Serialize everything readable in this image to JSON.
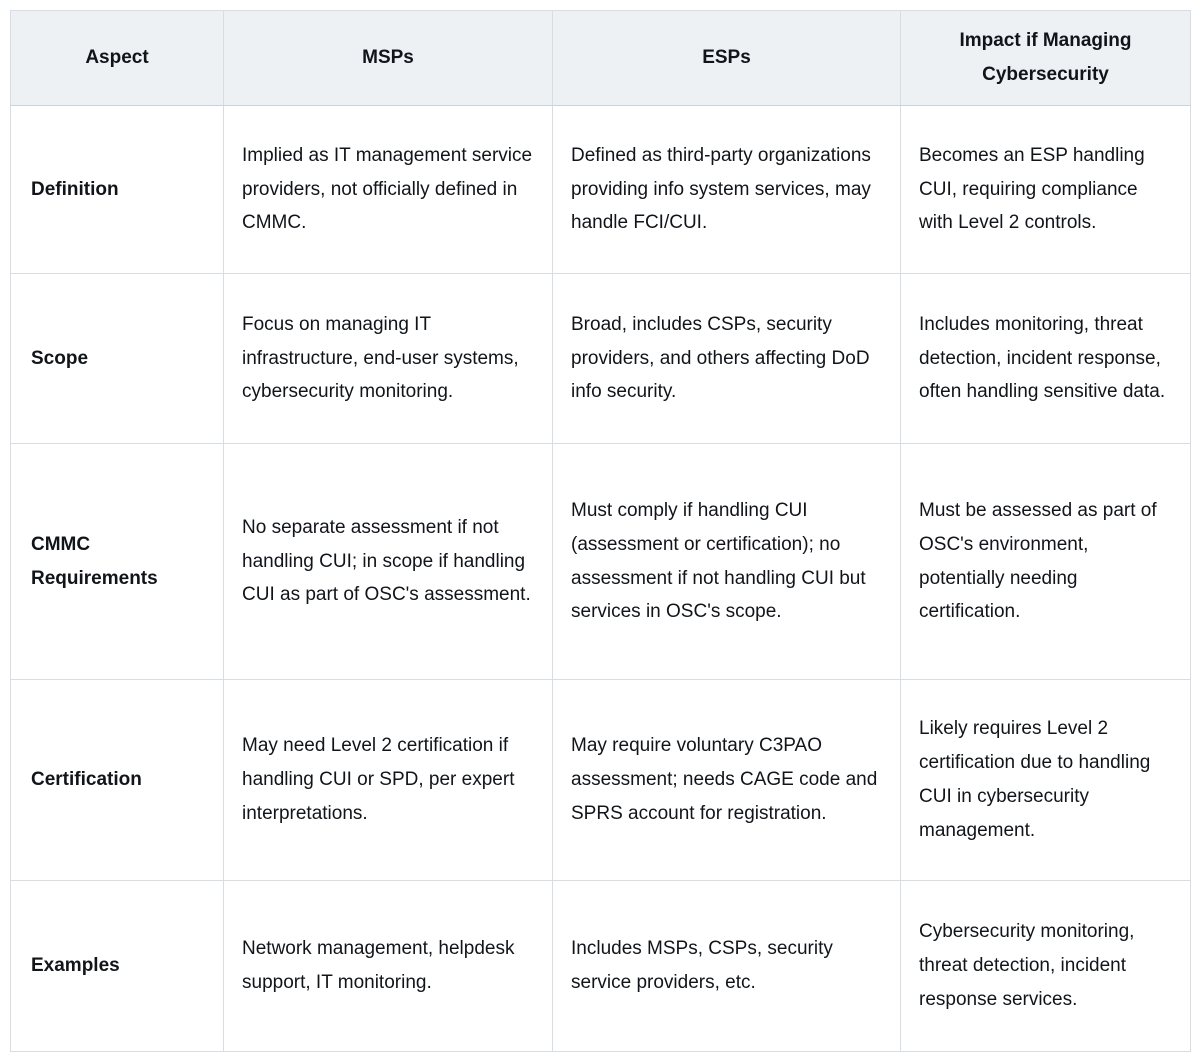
{
  "colors": {
    "header_background": "#eef1f4",
    "border": "#d7dde2",
    "header_bottom_border": "#c9d3da",
    "text": "#11151a",
    "page_background": "#ffffff"
  },
  "table": {
    "columns": [
      {
        "label": "Aspect"
      },
      {
        "label": "MSPs"
      },
      {
        "label": "ESPs"
      },
      {
        "label": "Impact if Managing Cybersecurity"
      }
    ],
    "rows": [
      {
        "aspect": "Definition",
        "msps": "Implied as IT management service providers, not officially defined in CMMC.",
        "esps": "Defined as third-party organizations providing info system services, may handle FCI/CUI.",
        "impact": "Becomes an ESP handling CUI, requiring compliance with Level 2 controls."
      },
      {
        "aspect": "Scope",
        "msps": "Focus on managing IT infrastructure, end-user systems, cybersecurity monitoring.",
        "esps": "Broad, includes CSPs, security providers, and others affecting DoD info security.",
        "impact": "Includes monitoring, threat detection, incident response, often handling sensitive data."
      },
      {
        "aspect": "CMMC Requirements",
        "msps": "No separate assessment if not handling CUI; in scope if handling CUI as part of OSC's assessment.",
        "esps": "Must comply if handling CUI (assessment or certification); no assessment if not handling CUI but services in OSC's scope.",
        "impact": "Must be assessed as part of OSC's environment, potentially needing certification."
      },
      {
        "aspect": "Certification",
        "msps": "May need Level 2 certification if handling CUI or SPD, per expert interpretations.",
        "esps": "May require voluntary C3PAO assessment; needs CAGE code and SPRS account for registration.",
        "impact": "Likely requires Level 2 certification due to handling CUI in cybersecurity management."
      },
      {
        "aspect": "Examples",
        "msps": "Network management, helpdesk support, IT monitoring.",
        "esps": "Includes MSPs, CSPs, security service providers, etc.",
        "impact": "Cybersecurity monitoring, threat detection, incident response services."
      }
    ]
  }
}
